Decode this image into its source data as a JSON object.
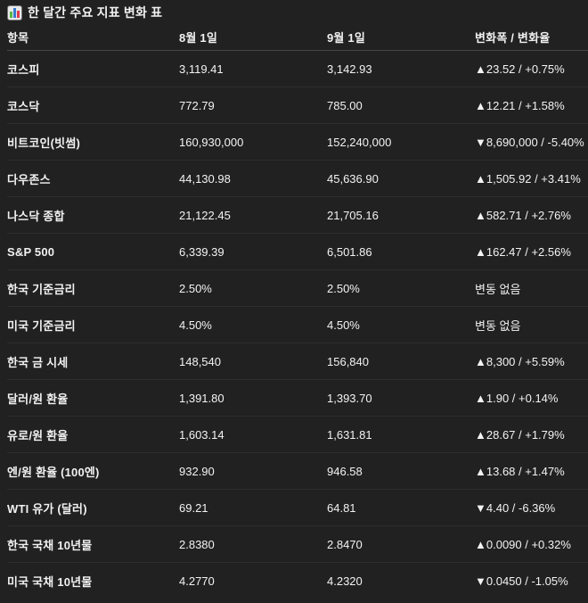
{
  "title": {
    "icon": "bar-chart-icon",
    "text": "한 달간 주요 지표 변화 표"
  },
  "chart_data": {
    "type": "table",
    "title": "한 달간 주요 지표 변화 표",
    "columns": [
      "항목",
      "8월 1일",
      "9월 1일",
      "변화폭 / 변화율"
    ],
    "row_keys": [
      "item",
      "val1",
      "val2",
      "change"
    ],
    "rows": [
      {
        "item": "코스피",
        "val1": "3,119.41",
        "val2": "3,142.93",
        "change": "▲23.52 / +0.75%"
      },
      {
        "item": "코스닥",
        "val1": "772.79",
        "val2": "785.00",
        "change": "▲12.21 / +1.58%"
      },
      {
        "item": "비트코인(빗썸)",
        "val1": "160,930,000",
        "val2": "152,240,000",
        "change": "▼8,690,000 / -5.40%"
      },
      {
        "item": "다우존스",
        "val1": "44,130.98",
        "val2": "45,636.90",
        "change": "▲1,505.92 / +3.41%"
      },
      {
        "item": "나스닥 종합",
        "val1": "21,122.45",
        "val2": "21,705.16",
        "change": "▲582.71 / +2.76%"
      },
      {
        "item": "S&P 500",
        "val1": "6,339.39",
        "val2": "6,501.86",
        "change": "▲162.47 / +2.56%"
      },
      {
        "item": "한국 기준금리",
        "val1": "2.50%",
        "val2": "2.50%",
        "change": "변동 없음"
      },
      {
        "item": "미국 기준금리",
        "val1": "4.50%",
        "val2": "4.50%",
        "change": "변동 없음"
      },
      {
        "item": "한국 금 시세",
        "val1": "148,540",
        "val2": "156,840",
        "change": "▲8,300 / +5.59%"
      },
      {
        "item": "달러/원 환율",
        "val1": "1,391.80",
        "val2": "1,393.70",
        "change": "▲1.90 / +0.14%"
      },
      {
        "item": "유로/원 환율",
        "val1": "1,603.14",
        "val2": "1,631.81",
        "change": "▲28.67 / +1.79%"
      },
      {
        "item": "엔/원 환율 (100엔)",
        "val1": "932.90",
        "val2": "946.58",
        "change": "▲13.68 / +1.47%"
      },
      {
        "item": "WTI 유가 (달러)",
        "val1": "69.21",
        "val2": "64.81",
        "change": "▼4.40 / -6.36%"
      },
      {
        "item": "한국 국채 10년물",
        "val1": "2.8380",
        "val2": "2.8470",
        "change": "▲0.0090 / +0.32%"
      },
      {
        "item": "미국 국채 10년물",
        "val1": "4.2770",
        "val2": "4.2320",
        "change": "▼0.0450 / -1.05%"
      }
    ]
  },
  "colors": {
    "background": "#212121",
    "text": "#f1f1f1",
    "header_divider": "#474747",
    "row_divider": "#2e2e2e",
    "emoji_bar_green": "#56b946",
    "emoji_bar_blue": "#3a7bd5",
    "emoji_bar_red": "#e23b4e"
  }
}
